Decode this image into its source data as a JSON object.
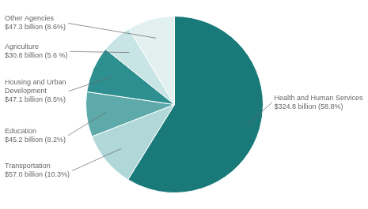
{
  "chart_data": {
    "type": "pie",
    "values": [
      58.8,
      10.3,
      8.2,
      8.5,
      5.6,
      8.6
    ],
    "colors": [
      "#1a7a7a",
      "#b0d8d8",
      "#5eaaaa",
      "#2d8f8f",
      "#c8e4e4",
      "#e2f0f0"
    ],
    "annotations": [
      "Health and Human Services\n$324.8 billion (58.8%)",
      "Transportation\n$57.0 billion (10.3%)",
      "Education\n$45.2 billion (8.2%)",
      "Housing and Urban\nDevelopment\n$47.1 billion (8.5%)",
      "Agriculture\n$30.8 billion (5.6 %)",
      "Other Agencies\n$47.3 billion (8.6%)"
    ]
  }
}
